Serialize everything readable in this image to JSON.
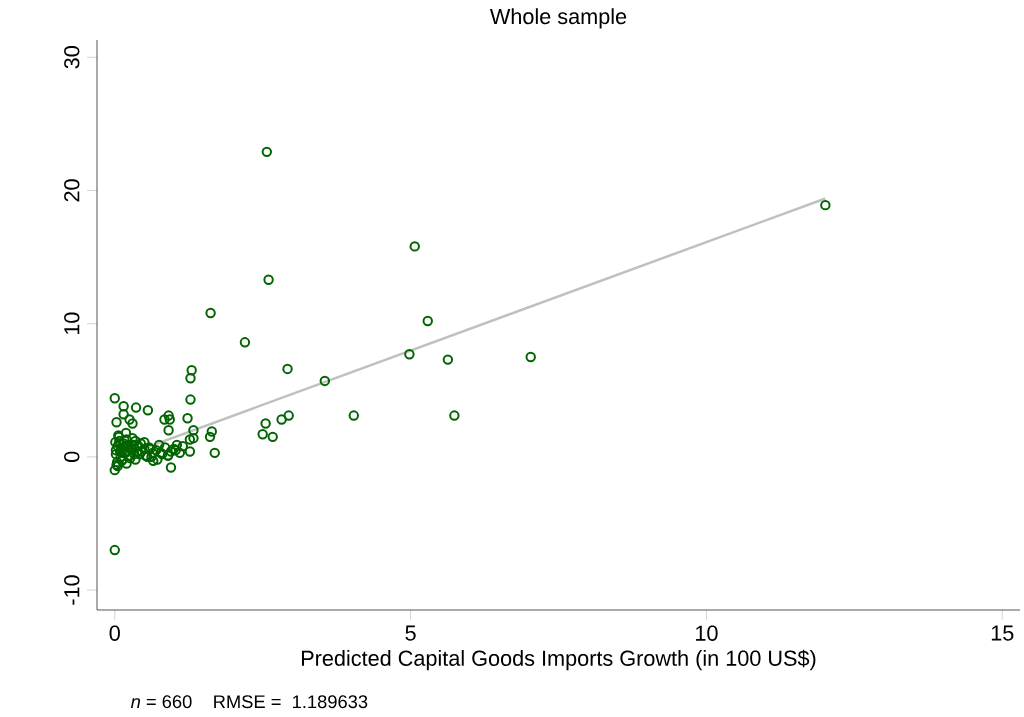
{
  "chart_data": {
    "type": "scatter",
    "title": "Whole sample",
    "xlabel": "Predicted Capital Goods Imports Growth (in 100 US$)",
    "annotations": [
      "*n* = 660    RMSE =  1.189633"
    ],
    "xlim": [
      -0.3,
      15.3
    ],
    "ylim": [
      -11.5,
      31.3
    ],
    "xticks": [
      0,
      5,
      10,
      15
    ],
    "yticks": [
      -10,
      0,
      10,
      20,
      30
    ],
    "series": [
      {
        "color": "#006400",
        "marker": "circle",
        "x": [
          2.57,
          12.01,
          5.07,
          2.6,
          1.62,
          5.29,
          2.2,
          4.98,
          5.63,
          7.03,
          2.92,
          1.3,
          1.28,
          3.55,
          1.28,
          0.0,
          0.15,
          0.36,
          0.56,
          0.15,
          2.94,
          2.82,
          4.04,
          5.74,
          0.91,
          0.93,
          0.25,
          1.23,
          2.55,
          0.03,
          0.3,
          0.84,
          0.91,
          1.33,
          1.64,
          1.61,
          2.5,
          2.67,
          1.33,
          1.27,
          0.07,
          1.69,
          1.27,
          0.95,
          0.0,
          0.0,
          0.02,
          0.05,
          0.08,
          0.1,
          0.12,
          0.15,
          0.18,
          0.2,
          0.22,
          0.25,
          0.28,
          0.3,
          0.33,
          0.35,
          0.4,
          0.45,
          0.5,
          0.55,
          0.6,
          0.65,
          0.7,
          0.75,
          0.8,
          0.85,
          0.9,
          0.95,
          1.0,
          1.05,
          1.1,
          0.03,
          0.06,
          0.1,
          0.14,
          0.2,
          0.26,
          0.32,
          0.38,
          0.44,
          0.52,
          0.58,
          0.64,
          0.72,
          0.02,
          0.04,
          0.07,
          0.12,
          0.17,
          0.23,
          0.29,
          0.35,
          0.42,
          0.5,
          0.62,
          0.78,
          0.9,
          1.03,
          1.15,
          0.01,
          0.05,
          0.09,
          0.13,
          0.19
        ],
        "values": [
          22.9,
          18.9,
          15.8,
          13.3,
          10.8,
          10.2,
          8.6,
          7.7,
          7.3,
          7.5,
          6.6,
          6.5,
          5.9,
          5.7,
          4.3,
          4.4,
          3.8,
          3.7,
          3.5,
          3.2,
          3.1,
          2.8,
          3.1,
          3.1,
          3.1,
          2.8,
          2.8,
          2.9,
          2.5,
          2.6,
          2.5,
          2.8,
          2.0,
          2.0,
          1.9,
          1.5,
          1.7,
          1.5,
          1.4,
          1.3,
          1.5,
          0.3,
          0.4,
          -0.8,
          -7.0,
          -1.0,
          0.2,
          0.8,
          1.2,
          0.5,
          -0.3,
          1.0,
          0.3,
          -0.5,
          0.9,
          0.1,
          0.6,
          1.4,
          0.2,
          -0.2,
          0.8,
          0.4,
          1.1,
          0.0,
          0.6,
          -0.3,
          0.5,
          0.9,
          0.2,
          0.7,
          0.1,
          0.4,
          0.6,
          0.9,
          0.3,
          -0.6,
          1.6,
          0.0,
          0.7,
          1.3,
          -0.1,
          0.9,
          0.4,
          1.0,
          0.1,
          0.7,
          0.3,
          -0.2,
          0.5,
          -0.4,
          1.0,
          0.6,
          0.3,
          0.8,
          0.5,
          1.2,
          0.2,
          0.6,
          0.0,
          0.3,
          0.1,
          0.5,
          0.8,
          1.1,
          -0.7,
          0.4,
          -0.2,
          1.8
        ]
      },
      {
        "type": "line",
        "color": "#c0c0c0",
        "line_style": "solid",
        "marker": "none",
        "x": [
          0,
          12.01
        ],
        "values": [
          -0.17,
          19.4
        ]
      }
    ]
  }
}
